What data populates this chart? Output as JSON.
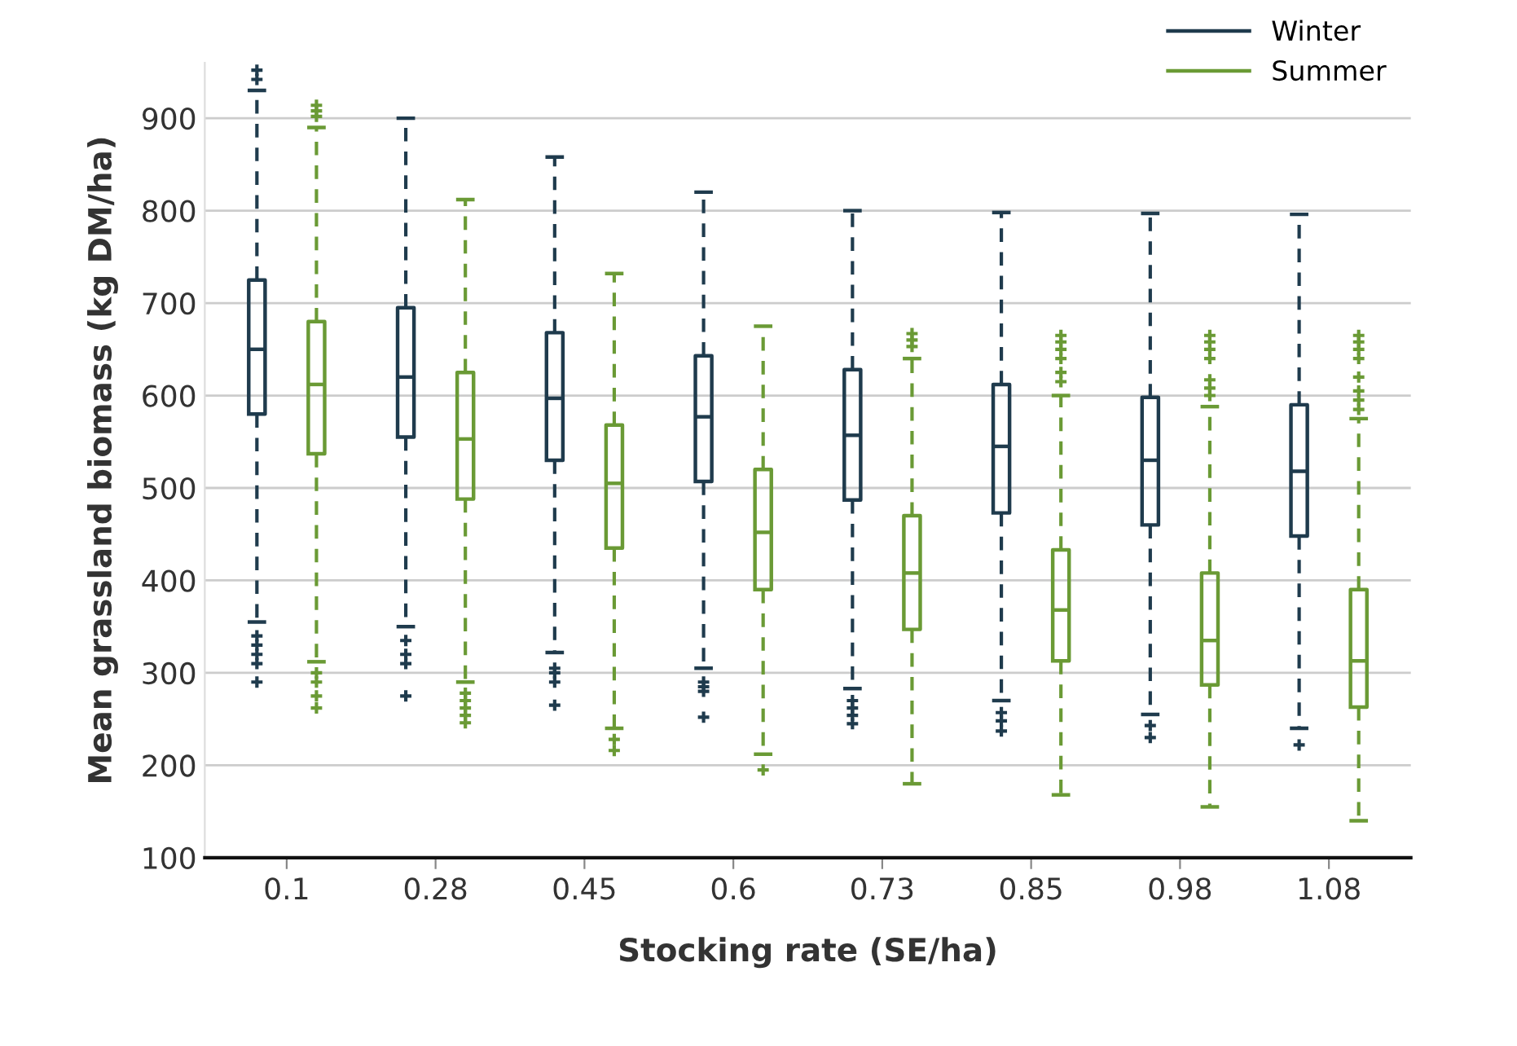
{
  "chart_data": {
    "type": "box",
    "xlabel": "Stocking rate (SE/ha)",
    "ylabel": "Mean grassland biomass (kg DM/ha)",
    "categories": [
      "0.1",
      "0.28",
      "0.45",
      "0.6",
      "0.73",
      "0.85",
      "0.98",
      "1.08"
    ],
    "ylim": [
      100,
      960
    ],
    "yticks": [
      100,
      200,
      300,
      400,
      500,
      600,
      700,
      800,
      900
    ],
    "grid": "y",
    "legend": "top right",
    "line_style": "dashed",
    "marker": "cross",
    "series": [
      {
        "name": "Winter",
        "color": "#1f3b4d",
        "boxes": [
          {
            "low": 355,
            "q1": 580,
            "median": 650,
            "q3": 725,
            "high": 930,
            "outliers": [
              942,
              952,
              340,
              330,
              320,
              310,
              290
            ]
          },
          {
            "low": 350,
            "q1": 555,
            "median": 620,
            "q3": 695,
            "high": 900,
            "outliers": [
              335,
              320,
              310,
              275
            ]
          },
          {
            "low": 322,
            "q1": 530,
            "median": 597,
            "q3": 668,
            "high": 858,
            "outliers": [
              305,
              300,
              290,
              265
            ]
          },
          {
            "low": 305,
            "q1": 507,
            "median": 577,
            "q3": 643,
            "high": 820,
            "outliers": [
              290,
              285,
              280,
              252
            ]
          },
          {
            "low": 283,
            "q1": 487,
            "median": 557,
            "q3": 628,
            "high": 800,
            "outliers": [
              270,
              262,
              254,
              245
            ]
          },
          {
            "low": 270,
            "q1": 473,
            "median": 545,
            "q3": 612,
            "high": 798,
            "outliers": [
              257,
              248,
              237
            ]
          },
          {
            "low": 255,
            "q1": 460,
            "median": 530,
            "q3": 598,
            "high": 797,
            "outliers": [
              243,
              230
            ]
          },
          {
            "low": 240,
            "q1": 448,
            "median": 518,
            "q3": 590,
            "high": 796,
            "outliers": [
              222
            ]
          }
        ]
      },
      {
        "name": "Summer",
        "color": "#6a9a35",
        "boxes": [
          {
            "low": 312,
            "q1": 537,
            "median": 612,
            "q3": 680,
            "high": 890,
            "outliers": [
              902,
              908,
              914,
              300,
              290,
              275,
              262
            ]
          },
          {
            "low": 290,
            "q1": 488,
            "median": 553,
            "q3": 625,
            "high": 812,
            "outliers": [
              278,
              270,
              262,
              254,
              246
            ]
          },
          {
            "low": 240,
            "q1": 435,
            "median": 505,
            "q3": 568,
            "high": 732,
            "outliers": [
              228,
              216
            ]
          },
          {
            "low": 212,
            "q1": 390,
            "median": 452,
            "q3": 520,
            "high": 675,
            "outliers": [
              195
            ]
          },
          {
            "low": 180,
            "q1": 347,
            "median": 408,
            "q3": 470,
            "high": 640,
            "outliers": [
              653,
              660,
              667
            ]
          },
          {
            "low": 168,
            "q1": 313,
            "median": 368,
            "q3": 433,
            "high": 600,
            "outliers": [
              615,
              625,
              640,
              650,
              658,
              665
            ]
          },
          {
            "low": 155,
            "q1": 287,
            "median": 335,
            "q3": 408,
            "high": 588,
            "outliers": [
              600,
              608,
              617,
              640,
              650,
              658,
              665
            ]
          },
          {
            "low": 140,
            "q1": 263,
            "median": 313,
            "q3": 390,
            "high": 575,
            "outliers": [
              585,
              595,
              605,
              620,
              640,
              650,
              658,
              665
            ]
          }
        ]
      }
    ]
  }
}
